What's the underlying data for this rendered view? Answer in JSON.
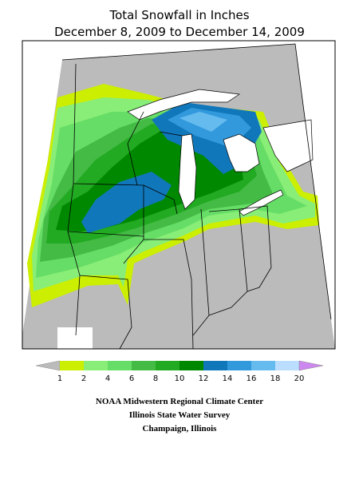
{
  "header": {
    "title_lines": [
      "Total Snowfall in Inches",
      "December 8, 2009 to December 14, 2009"
    ]
  },
  "legend": {
    "under_color": "#bbbbbb",
    "over_color": "#cc88ee",
    "colors": [
      "#ccee00",
      "#88ee77",
      "#66dd66",
      "#44bb44",
      "#22aa22",
      "#008800",
      "#1177bb",
      "#3399dd",
      "#66bbee",
      "#bbddff"
    ],
    "ticks": [
      1,
      2,
      4,
      6,
      8,
      10,
      12,
      14,
      16,
      18,
      20
    ]
  },
  "footer": {
    "lines": [
      "NOAA Midwestern Regional Climate Center",
      "Illinois State Water Survey",
      "Champaign, Illinois"
    ]
  }
}
